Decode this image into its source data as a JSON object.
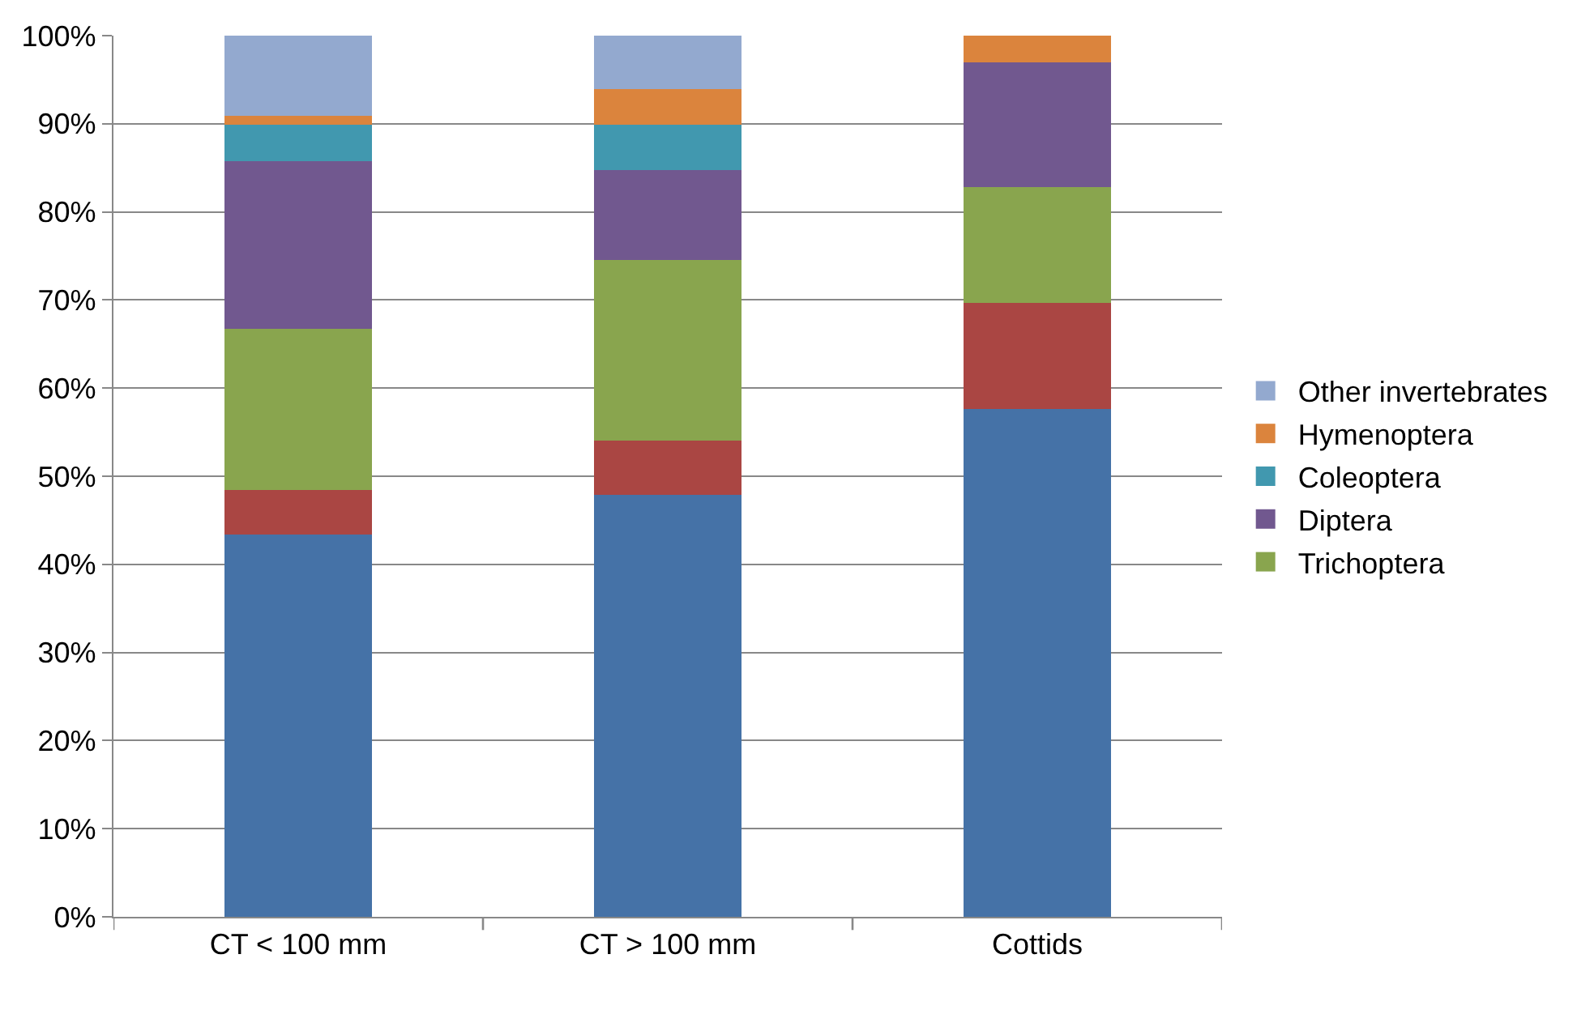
{
  "chart_data": {
    "type": "bar",
    "stacked": true,
    "categories": [
      "CT < 100 mm",
      "CT > 100 mm",
      "Cottids"
    ],
    "series": [
      {
        "color": "#4572a7",
        "values": [
          43.4,
          47.9,
          57.6
        ]
      },
      {
        "color": "#aa4643",
        "values": [
          5.0,
          6.1,
          12.1
        ]
      },
      {
        "name": "Trichoptera",
        "color": "#89a54e",
        "values": [
          18.3,
          20.5,
          13.1
        ]
      },
      {
        "name": "Diptera",
        "color": "#71588f",
        "values": [
          19.1,
          10.2,
          14.2
        ]
      },
      {
        "name": "Coleoptera",
        "color": "#4198af",
        "values": [
          4.1,
          5.2,
          0
        ]
      },
      {
        "name": "Hymenoptera",
        "color": "#db843d",
        "values": [
          1.0,
          4.0,
          3.0
        ]
      },
      {
        "name": "Other invertebrates",
        "color": "#93a9cf",
        "values": [
          9.1,
          6.1,
          0
        ]
      }
    ],
    "ylim": [
      0,
      100
    ],
    "yticks": [
      {
        "value": 0,
        "label": "0%"
      },
      {
        "value": 10,
        "label": "10%"
      },
      {
        "value": 20,
        "label": "20%"
      },
      {
        "value": 30,
        "label": "30%"
      },
      {
        "value": 40,
        "label": "40%"
      },
      {
        "value": 50,
        "label": "50%"
      },
      {
        "value": 60,
        "label": "60%"
      },
      {
        "value": 70,
        "label": "70%"
      },
      {
        "value": 80,
        "label": "80%"
      },
      {
        "value": 90,
        "label": "90%"
      },
      {
        "value": 100,
        "label": "100%"
      }
    ],
    "grid": "y",
    "legend": "right"
  }
}
